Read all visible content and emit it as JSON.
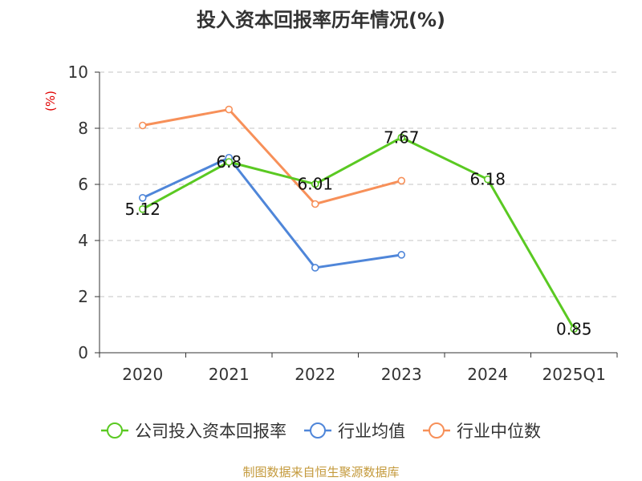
{
  "chart_data": {
    "type": "line",
    "title": "投入资本回报率历年情况(%)",
    "ylabel": "(%)",
    "categories": [
      "2020",
      "2021",
      "2022",
      "2023",
      "2024",
      "2025Q1"
    ],
    "ylim": [
      0,
      10
    ],
    "yticks": [
      0,
      2,
      4,
      6,
      8,
      10
    ],
    "grid": true,
    "legend_position": "bottom",
    "series": [
      {
        "name": "公司投入资本回报率",
        "color": "#5ac922",
        "values": [
          5.12,
          6.8,
          6.01,
          7.67,
          6.18,
          0.85
        ],
        "labels": [
          "5.12",
          "6.8",
          "6.01",
          "7.67",
          "6.18",
          "0.85"
        ]
      },
      {
        "name": "行业均值",
        "color": "#4f86d9",
        "values": [
          5.52,
          6.95,
          3.03,
          3.49,
          null,
          null
        ]
      },
      {
        "name": "行业中位数",
        "color": "#f79059",
        "values": [
          8.1,
          8.67,
          5.3,
          6.13,
          null,
          null
        ]
      }
    ]
  },
  "source": "制图数据来自恒生聚源数据库",
  "colors": {
    "source_text": "#c49a3c",
    "unit_text": "#e00000"
  }
}
